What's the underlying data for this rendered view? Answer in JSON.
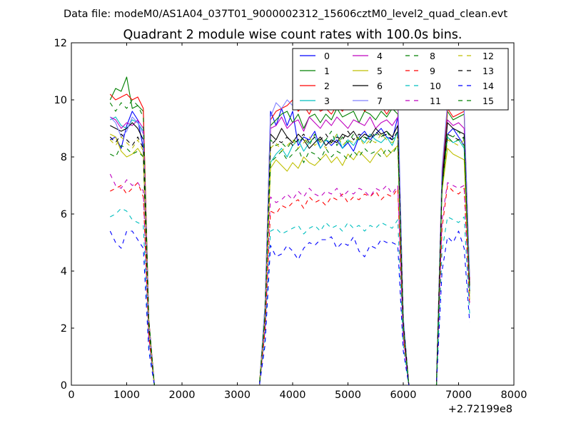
{
  "suptitle": "Data file: modeM0/AS1A04_037T01_9000002312_15606cztM0_level2_quad_clean.evt",
  "chart_data": {
    "type": "line",
    "title": "Quadrant 2 module wise count rates with 100.0s bins.",
    "xlabel": "",
    "ylabel": "",
    "x_offset_label": "+2.72199e8",
    "xlim": [
      0,
      8000
    ],
    "ylim": [
      0,
      12
    ],
    "x_ticks": [
      "0",
      "1000",
      "2000",
      "3000",
      "4000",
      "5000",
      "6000",
      "7000",
      "8000"
    ],
    "y_ticks": [
      "0",
      "2",
      "4",
      "6",
      "8",
      "10",
      "12"
    ],
    "legend_position": "top-right",
    "x": [
      700,
      800,
      900,
      1000,
      1100,
      1200,
      1300,
      1400,
      1500,
      1600,
      1700,
      1800,
      1900,
      2000,
      2100,
      2200,
      2300,
      2400,
      2500,
      2600,
      2700,
      2800,
      2900,
      3000,
      3100,
      3200,
      3300,
      3400,
      3500,
      3600,
      3700,
      3800,
      3900,
      4000,
      4100,
      4200,
      4300,
      4400,
      4500,
      4600,
      4700,
      4800,
      4900,
      5000,
      5100,
      5200,
      5300,
      5400,
      5500,
      5600,
      5700,
      5800,
      5900,
      6000,
      6100,
      6200,
      6300,
      6400,
      6500,
      6600,
      6700,
      6800,
      6900,
      7000,
      7100,
      7200
    ],
    "series": [
      {
        "name": "0",
        "color": "#0000ff",
        "style": "solid",
        "values": [
          8.6,
          8.7,
          8.3,
          9.1,
          9.6,
          9.3,
          8.3,
          2.0,
          0,
          0,
          0,
          0,
          0,
          0,
          0,
          0,
          0,
          0,
          0,
          0,
          0,
          0,
          0,
          0,
          0,
          0,
          0,
          0,
          2.5,
          9.6,
          9.1,
          9.7,
          9.1,
          9.6,
          8.4,
          8.7,
          8.6,
          8.9,
          8.3,
          8.6,
          8.4,
          8.6,
          8.3,
          8.5,
          8.2,
          8.7,
          8.9,
          8.6,
          8.8,
          9.0,
          8.7,
          8.6,
          9.4,
          2.1,
          0,
          0,
          0,
          0,
          0,
          0,
          7.0,
          8.8,
          9.0,
          8.7,
          8.4,
          3.3
        ]
      },
      {
        "name": "1",
        "color": "#008000",
        "style": "solid",
        "values": [
          10.0,
          10.4,
          10.3,
          10.8,
          9.7,
          9.8,
          9.6,
          2.3,
          0,
          0,
          0,
          0,
          0,
          0,
          0,
          0,
          0,
          0,
          0,
          0,
          0,
          0,
          0,
          0,
          0,
          0,
          0,
          0,
          2.8,
          9.1,
          9.3,
          9.5,
          9.6,
          9.2,
          9.5,
          9.0,
          9.4,
          9.5,
          9.2,
          9.5,
          9.3,
          9.7,
          9.4,
          9.5,
          9.6,
          9.2,
          9.6,
          9.5,
          9.3,
          9.6,
          9.4,
          9.7,
          9.5,
          2.3,
          0,
          0,
          0,
          0,
          0,
          0,
          7.3,
          9.6,
          9.3,
          9.4,
          9.5,
          3.7
        ]
      },
      {
        "name": "2",
        "color": "#ff0000",
        "style": "solid",
        "values": [
          10.2,
          10.0,
          10.1,
          10.2,
          10.0,
          10.1,
          9.7,
          2.3,
          0,
          0,
          0,
          0,
          0,
          0,
          0,
          0,
          0,
          0,
          0,
          0,
          0,
          0,
          0,
          0,
          0,
          0,
          0,
          0,
          2.7,
          9.3,
          9.6,
          9.7,
          9.8,
          10.0,
          9.6,
          9.8,
          9.5,
          9.9,
          9.6,
          9.7,
          9.5,
          9.8,
          9.6,
          9.9,
          9.7,
          10.0,
          9.6,
          9.8,
          10.0,
          9.8,
          9.5,
          9.8,
          9.9,
          2.3,
          0,
          0,
          0,
          0,
          0,
          0,
          7.5,
          9.7,
          9.4,
          9.5,
          9.6,
          3.7
        ]
      },
      {
        "name": "3",
        "color": "#00bfbf",
        "style": "solid",
        "values": [
          9.3,
          9.4,
          9.1,
          9.0,
          9.3,
          9.2,
          8.9,
          2.2,
          0,
          0,
          0,
          0,
          0,
          0,
          0,
          0,
          0,
          0,
          0,
          0,
          0,
          0,
          0,
          0,
          0,
          0,
          0,
          0,
          2.4,
          7.8,
          8.1,
          8.3,
          8.0,
          8.4,
          8.6,
          8.2,
          8.5,
          8.7,
          8.3,
          8.6,
          8.5,
          8.8,
          8.3,
          8.6,
          8.4,
          8.7,
          8.5,
          8.8,
          8.6,
          8.5,
          8.7,
          8.4,
          8.9,
          2.2,
          0,
          0,
          0,
          0,
          0,
          0,
          7.0,
          8.7,
          8.5,
          8.6,
          8.3,
          3.2
        ]
      },
      {
        "name": "4",
        "color": "#bf00bf",
        "style": "solid",
        "values": [
          9.4,
          9.3,
          9.0,
          9.2,
          9.1,
          9.3,
          9.0,
          2.2,
          0,
          0,
          0,
          0,
          0,
          0,
          0,
          0,
          0,
          0,
          0,
          0,
          0,
          0,
          0,
          0,
          0,
          0,
          0,
          0,
          2.6,
          9.0,
          9.1,
          9.4,
          9.0,
          9.2,
          9.3,
          8.9,
          9.4,
          9.2,
          9.0,
          9.3,
          9.1,
          9.4,
          9.2,
          9.0,
          9.3,
          9.2,
          9.1,
          9.4,
          9.0,
          9.2,
          9.3,
          9.1,
          9.4,
          2.2,
          0,
          0,
          0,
          0,
          0,
          0,
          7.2,
          9.3,
          9.1,
          9.2,
          9.0,
          3.5
        ]
      },
      {
        "name": "5",
        "color": "#bfbf00",
        "style": "solid",
        "values": [
          8.8,
          8.7,
          8.2,
          8.0,
          8.1,
          8.3,
          8.0,
          2.0,
          0,
          0,
          0,
          0,
          0,
          0,
          0,
          0,
          0,
          0,
          0,
          0,
          0,
          0,
          0,
          0,
          0,
          0,
          0,
          0,
          2.3,
          7.6,
          7.9,
          7.7,
          7.5,
          7.8,
          7.6,
          8.0,
          7.8,
          7.7,
          7.9,
          8.1,
          7.8,
          8.0,
          7.7,
          8.1,
          7.9,
          8.2,
          8.0,
          7.8,
          8.1,
          8.3,
          8.0,
          8.2,
          8.4,
          2.0,
          0,
          0,
          0,
          0,
          0,
          0,
          6.8,
          8.3,
          8.1,
          8.0,
          7.9,
          3.0
        ]
      },
      {
        "name": "6",
        "color": "#000000",
        "style": "solid",
        "values": [
          9.1,
          9.0,
          8.9,
          9.0,
          9.2,
          9.0,
          8.6,
          2.2,
          0,
          0,
          0,
          0,
          0,
          0,
          0,
          0,
          0,
          0,
          0,
          0,
          0,
          0,
          0,
          0,
          0,
          0,
          0,
          0,
          2.5,
          8.8,
          8.6,
          9.0,
          8.7,
          8.5,
          8.8,
          8.6,
          8.3,
          8.5,
          8.7,
          8.4,
          8.6,
          8.5,
          8.8,
          8.7,
          8.9,
          8.6,
          8.8,
          8.7,
          9.0,
          8.8,
          8.9,
          8.7,
          9.1,
          2.2,
          0,
          0,
          0,
          0,
          0,
          0,
          7.1,
          9.2,
          9.0,
          8.9,
          8.8,
          3.5
        ]
      },
      {
        "name": "7",
        "color": "#8080ff",
        "style": "solid",
        "values": [
          9.4,
          9.2,
          8.7,
          8.9,
          9.4,
          9.2,
          8.8,
          2.2,
          0,
          0,
          0,
          0,
          0,
          0,
          0,
          0,
          0,
          0,
          0,
          0,
          0,
          0,
          0,
          0,
          0,
          0,
          0,
          0,
          2.8,
          9.4,
          9.9,
          9.7,
          10.0,
          9.8,
          10.1,
          9.9,
          10.0,
          10.1,
          9.8,
          10.0,
          9.7,
          10.2,
          9.9,
          10.3,
          9.8,
          10.0,
          10.4,
          9.9,
          10.1,
          9.8,
          10.2,
          10.0,
          10.3,
          2.4,
          0,
          0,
          0,
          0,
          0,
          0,
          7.6,
          9.9,
          9.8,
          9.9,
          9.7,
          3.8
        ]
      },
      {
        "name": "8",
        "color": "#008000",
        "style": "dashed",
        "values": [
          8.1,
          8.0,
          8.4,
          8.3,
          8.1,
          8.2,
          8.0,
          2.0,
          0,
          0,
          0,
          0,
          0,
          0,
          0,
          0,
          0,
          0,
          0,
          0,
          0,
          0,
          0,
          0,
          0,
          0,
          0,
          0,
          2.3,
          8.6,
          8.4,
          8.5,
          8.3,
          8.6,
          8.5,
          8.7,
          8.4,
          8.8,
          8.5,
          8.6,
          8.9,
          8.4,
          8.7,
          8.5,
          8.8,
          8.6,
          8.7,
          8.5,
          8.8,
          8.7,
          8.9,
          8.6,
          8.8,
          2.1,
          0,
          0,
          0,
          0,
          0,
          0,
          6.9,
          8.7,
          8.5,
          8.6,
          8.4,
          3.2
        ]
      },
      {
        "name": "9",
        "color": "#ff0000",
        "style": "dashed",
        "values": [
          6.8,
          6.9,
          7.0,
          6.7,
          6.9,
          7.1,
          6.6,
          1.7,
          0,
          0,
          0,
          0,
          0,
          0,
          0,
          0,
          0,
          0,
          0,
          0,
          0,
          0,
          0,
          0,
          0,
          0,
          0,
          0,
          1.9,
          6.1,
          6.0,
          6.3,
          6.2,
          6.4,
          6.5,
          6.2,
          6.6,
          6.4,
          6.5,
          6.3,
          6.6,
          6.5,
          6.7,
          6.4,
          6.6,
          6.5,
          6.7,
          6.6,
          6.8,
          6.5,
          6.7,
          6.6,
          6.9,
          1.7,
          0,
          0,
          0,
          0,
          0,
          0,
          5.5,
          7.0,
          6.8,
          6.7,
          6.9,
          2.8
        ]
      },
      {
        "name": "10",
        "color": "#00bfbf",
        "style": "dashed",
        "values": [
          5.9,
          6.0,
          6.2,
          6.1,
          5.8,
          5.7,
          5.6,
          1.4,
          0,
          0,
          0,
          0,
          0,
          0,
          0,
          0,
          0,
          0,
          0,
          0,
          0,
          0,
          0,
          0,
          0,
          0,
          0,
          0,
          1.6,
          5.4,
          5.5,
          5.3,
          5.4,
          5.5,
          5.6,
          5.3,
          5.5,
          5.6,
          5.4,
          5.7,
          5.5,
          5.6,
          5.4,
          5.7,
          5.5,
          5.6,
          5.4,
          5.6,
          5.5,
          5.7,
          5.6,
          5.5,
          5.8,
          1.4,
          0,
          0,
          0,
          0,
          0,
          0,
          4.7,
          5.9,
          5.8,
          5.7,
          5.9,
          2.5
        ]
      },
      {
        "name": "11",
        "color": "#bf00bf",
        "style": "dashed",
        "values": [
          7.4,
          7.0,
          6.9,
          7.2,
          7.0,
          7.1,
          6.8,
          1.7,
          0,
          0,
          0,
          0,
          0,
          0,
          0,
          0,
          0,
          0,
          0,
          0,
          0,
          0,
          0,
          0,
          0,
          0,
          0,
          0,
          2.0,
          6.6,
          6.4,
          6.5,
          6.7,
          6.5,
          6.8,
          6.6,
          6.9,
          6.7,
          6.6,
          6.8,
          6.7,
          6.9,
          6.6,
          6.8,
          6.7,
          6.9,
          6.8,
          6.6,
          6.9,
          6.8,
          7.0,
          6.7,
          7.0,
          1.7,
          0,
          0,
          0,
          0,
          0,
          0,
          5.8,
          7.1,
          7.0,
          6.9,
          7.0,
          2.9
        ]
      },
      {
        "name": "12",
        "color": "#bfbf00",
        "style": "dashed",
        "values": [
          8.6,
          8.4,
          8.7,
          8.5,
          8.3,
          8.6,
          8.2,
          2.0,
          0,
          0,
          0,
          0,
          0,
          0,
          0,
          0,
          0,
          0,
          0,
          0,
          0,
          0,
          0,
          0,
          0,
          0,
          0,
          0,
          2.4,
          8.3,
          8.5,
          8.2,
          8.4,
          8.6,
          8.3,
          8.5,
          8.7,
          8.4,
          8.6,
          8.3,
          8.5,
          8.8,
          8.4,
          8.6,
          8.5,
          8.7,
          8.4,
          8.6,
          8.5,
          8.8,
          8.6,
          8.5,
          8.7,
          2.1,
          0,
          0,
          0,
          0,
          0,
          0,
          6.9,
          8.6,
          8.5,
          8.4,
          8.6,
          3.1
        ]
      },
      {
        "name": "13",
        "color": "#000000",
        "style": "dashed",
        "values": [
          8.7,
          8.5,
          8.8,
          8.6,
          8.4,
          8.7,
          8.3,
          2.1,
          0,
          0,
          0,
          0,
          0,
          0,
          0,
          0,
          0,
          0,
          0,
          0,
          0,
          0,
          0,
          0,
          0,
          0,
          0,
          0,
          2.4,
          8.4,
          8.6,
          8.5,
          8.7,
          8.4,
          8.6,
          8.8,
          8.5,
          8.7,
          8.6,
          8.8,
          8.5,
          8.7,
          8.6,
          8.9,
          8.6,
          8.8,
          8.7,
          8.6,
          8.9,
          8.7,
          8.8,
          8.6,
          8.9,
          2.2,
          0,
          0,
          0,
          0,
          0,
          0,
          7.0,
          8.8,
          8.7,
          8.6,
          8.7,
          3.3
        ]
      },
      {
        "name": "14",
        "color": "#0000ff",
        "style": "dashed",
        "values": [
          5.4,
          5.0,
          4.8,
          5.4,
          5.4,
          5.1,
          4.8,
          1.2,
          0,
          0,
          0,
          0,
          0,
          0,
          0,
          0,
          0,
          0,
          0,
          0,
          0,
          0,
          0,
          0,
          0,
          0,
          0,
          0,
          1.4,
          4.9,
          4.5,
          4.6,
          4.9,
          4.7,
          4.4,
          4.8,
          5.0,
          4.9,
          5.1,
          5.1,
          5.2,
          4.8,
          5.0,
          4.9,
          5.2,
          4.7,
          4.5,
          4.9,
          4.8,
          5.1,
          5.0,
          5.0,
          4.9,
          1.2,
          0,
          0,
          0,
          0,
          0,
          0,
          4.0,
          5.2,
          5.0,
          5.4,
          4.8,
          2.2
        ]
      },
      {
        "name": "15",
        "color": "#008000",
        "style": "dashed",
        "values": [
          9.9,
          9.6,
          9.9,
          9.7,
          10.0,
          9.8,
          9.4,
          2.3,
          0,
          0,
          0,
          0,
          0,
          0,
          0,
          0,
          0,
          0,
          0,
          0,
          0,
          0,
          0,
          0,
          0,
          0,
          0,
          0,
          2.5,
          7.8,
          8.0,
          8.2,
          7.9,
          8.1,
          8.3,
          7.8,
          8.2,
          8.1,
          7.9,
          8.3,
          8.0,
          8.2,
          8.1,
          7.9,
          8.2,
          8.0,
          8.3,
          8.1,
          8.2,
          8.0,
          8.3,
          8.1,
          8.4,
          2.1,
          0,
          0,
          0,
          0,
          0,
          0,
          6.9,
          8.8,
          8.7,
          8.9,
          8.6,
          3.3
        ]
      }
    ]
  }
}
